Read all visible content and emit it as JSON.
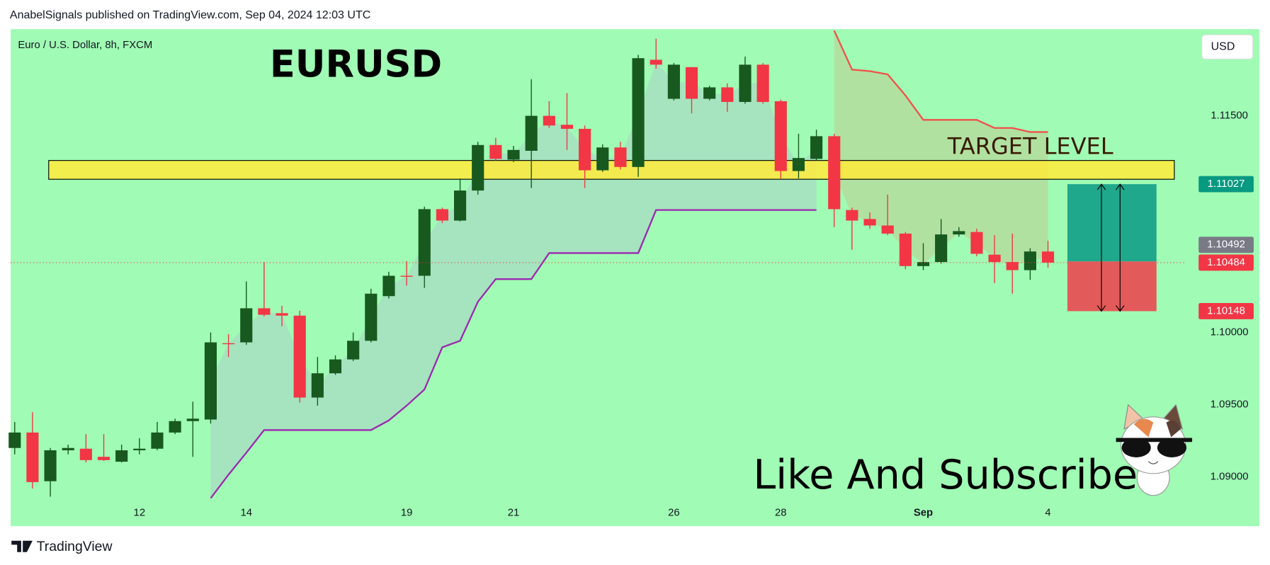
{
  "header": "AnabelSignals published on TradingView.com, Sep 04, 2024 12:03 UTC",
  "footer": "TradingView",
  "chart_data": {
    "type": "candlestick",
    "title": "EURUSD",
    "subtitle": "Euro / U.S. Dollar, 8h, FXCM",
    "currency": "USD",
    "background": "#a0fbb4",
    "up_color": "#17591f",
    "down_color": "#f23645",
    "categories": [
      null,
      null,
      null,
      null,
      null,
      null,
      null,
      "12",
      null,
      null,
      null,
      null,
      null,
      "14",
      null,
      null,
      null,
      null,
      null,
      null,
      null,
      null,
      "19",
      null,
      null,
      null,
      null,
      null,
      "21",
      null,
      null,
      null,
      null,
      null,
      null,
      null,
      null,
      "26",
      null,
      null,
      null,
      null,
      null,
      "28",
      null,
      null,
      null,
      null,
      null,
      null,
      null,
      "Sep",
      null,
      null,
      null,
      null,
      null,
      null,
      "4"
    ],
    "open": [
      1.09201,
      1.09308,
      1.08971,
      1.09185,
      1.09196,
      1.0914,
      1.09106,
      1.09185,
      1.09196,
      1.09308,
      1.09387,
      1.09398,
      1.09926,
      1.09932,
      1.10168,
      1.10134,
      1.10117,
      1.0955,
      1.09718,
      1.09814,
      1.09943,
      1.10252,
      1.10393,
      1.10393,
      1.10854,
      1.10775,
      1.10983,
      1.11298,
      1.11197,
      1.11258,
      1.115,
      1.11438,
      1.1141,
      1.11123,
      1.11281,
      1.11146,
      1.11888,
      1.11618,
      1.11837,
      1.11618,
      1.11697,
      1.11596,
      1.11854,
      1.11601,
      1.11118,
      1.11202,
      1.11359,
      1.10848,
      1.10786,
      1.10741,
      1.10685,
      1.1046,
      1.10488,
      1.10679,
      1.10696,
      1.10539,
      1.10488,
      1.10432,
      1.10561
    ],
    "high": [
      1.09381,
      1.09449,
      1.09201,
      1.09224,
      1.09297,
      1.09297,
      1.09224,
      1.09269,
      1.09381,
      1.09404,
      1.09522,
      1.1,
      1.09989,
      1.10354,
      1.10488,
      1.10185,
      1.10151,
      1.09831,
      1.09842,
      1.1,
      1.10303,
      1.10421,
      1.10494,
      1.10871,
      1.10865,
      1.11067,
      1.1132,
      1.11348,
      1.11292,
      1.11753,
      1.11601,
      1.11657,
      1.11433,
      1.11303,
      1.1132,
      1.11922,
      1.12034,
      1.11865,
      1.11837,
      1.11708,
      1.11725,
      1.1191,
      1.11865,
      1.11612,
      1.11376,
      1.11404,
      1.11376,
      1.10865,
      1.10831,
      1.10955,
      1.10696,
      1.10618,
      1.10786,
      1.1073,
      1.10719,
      1.10674,
      1.10685,
      1.10584,
      1.10635
    ],
    "low": [
      1.09157,
      1.0892,
      1.08864,
      1.09157,
      1.09101,
      1.09112,
      1.09101,
      1.09157,
      1.09185,
      1.09297,
      1.0914,
      1.0937,
      1.09831,
      1.09915,
      1.10112,
      1.10044,
      1.09516,
      1.09494,
      1.09707,
      1.09803,
      1.09932,
      1.10235,
      1.10325,
      1.10309,
      1.10758,
      1.10769,
      1.10955,
      1.11191,
      1.1118,
      1.11,
      1.11416,
      1.11264,
      1.11,
      1.11112,
      1.11129,
      1.11078,
      1.11826,
      1.11607,
      1.11517,
      1.11607,
      1.11528,
      1.11584,
      1.11584,
      1.11067,
      1.11067,
      1.11191,
      1.1073,
      1.10573,
      1.10719,
      1.10674,
      1.10438,
      1.10432,
      1.10477,
      1.10663,
      1.10528,
      1.10342,
      1.10269,
      1.10365,
      1.10449
    ],
    "close": [
      1.09308,
      1.08965,
      1.09185,
      1.09201,
      1.09117,
      1.09117,
      1.09185,
      1.09196,
      1.09308,
      1.09387,
      1.09404,
      1.09932,
      1.09921,
      1.10168,
      1.10123,
      1.10117,
      1.0955,
      1.09718,
      1.09814,
      1.09943,
      1.10269,
      1.10393,
      1.10387,
      1.10854,
      1.10775,
      1.10983,
      1.11298,
      1.11202,
      1.11264,
      1.115,
      1.11433,
      1.1141,
      1.11123,
      1.11281,
      1.11146,
      1.11899,
      1.11854,
      1.11854,
      1.11618,
      1.11697,
      1.11596,
      1.11854,
      1.11596,
      1.11118,
      1.11208,
      1.11359,
      1.10854,
      1.10775,
      1.10741,
      1.10685,
      1.1046,
      1.10488,
      1.10679,
      1.10702,
      1.10545,
      1.10488,
      1.10432,
      1.10561,
      1.10484
    ],
    "lines": [
      {
        "color": "#9c27b0",
        "fill": "#a6dfc0",
        "values": [
          null,
          null,
          null,
          null,
          null,
          null,
          null,
          null,
          null,
          null,
          null,
          1.08853,
          1.09016,
          1.09168,
          1.09325,
          1.09325,
          1.09325,
          1.09325,
          1.09325,
          1.09325,
          1.09325,
          1.09392,
          1.09494,
          1.09606,
          1.09898,
          1.09943,
          1.10213,
          1.1037,
          1.1037,
          1.1037,
          1.1055,
          1.1055,
          1.1055,
          1.1055,
          1.1055,
          1.1055,
          1.10848,
          1.10848,
          1.10848,
          1.10848,
          1.10848,
          1.10848,
          1.10848,
          1.10848,
          1.10848,
          1.10848,
          null,
          null,
          null,
          null,
          null,
          null,
          null,
          null,
          null,
          null,
          null,
          null,
          null
        ]
      },
      {
        "color": "#f0504a",
        "fill": "#b4dc9c",
        "values": [
          null,
          null,
          null,
          null,
          null,
          null,
          null,
          null,
          null,
          null,
          null,
          null,
          null,
          null,
          null,
          null,
          null,
          null,
          null,
          null,
          null,
          null,
          null,
          null,
          null,
          null,
          null,
          null,
          null,
          null,
          null,
          null,
          null,
          null,
          null,
          null,
          null,
          null,
          null,
          null,
          null,
          null,
          null,
          null,
          null,
          null,
          1.1209,
          1.1182,
          1.11809,
          1.11787,
          1.11641,
          1.11472,
          1.11472,
          1.11472,
          1.11472,
          1.11416,
          1.11416,
          1.11388,
          1.11388
        ]
      }
    ],
    "ylim": [
      1.0866,
      1.121
    ],
    "yticks": [
      {
        "value": 1.09,
        "label": "1.09000"
      },
      {
        "value": 1.095,
        "label": "1.09500"
      },
      {
        "value": 1.1,
        "label": "1.10000"
      },
      {
        "value": 1.115,
        "label": "1.11500"
      }
    ],
    "price_labels": [
      {
        "value": 1.11027,
        "label": "1.11027",
        "color": "#089981"
      },
      {
        "value": 1.10492,
        "label": "1.10492",
        "color": "#787b86"
      },
      {
        "value": 1.10484,
        "label": "1.10484",
        "color": "#f23645"
      },
      {
        "value": 1.10148,
        "label": "1.10148",
        "color": "#f23645"
      }
    ],
    "target_zone": {
      "label": "TARGET LEVEL",
      "range": [
        1.11061,
        1.11191
      ],
      "color": "#ffeb3b"
    },
    "annotation": "Like And Subscribe"
  }
}
